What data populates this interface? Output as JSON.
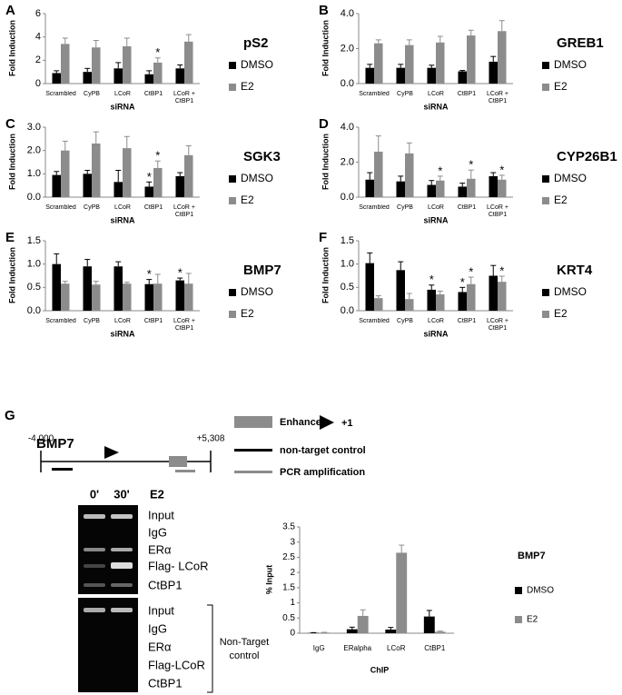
{
  "chart_data": [
    {
      "type": "bar",
      "panel": "A",
      "title": "pS2",
      "ylabel": "Fold Induction",
      "xlabel": "siRNA",
      "categories": [
        "Scrambled",
        "CyPB",
        "LCoR",
        "CtBP1",
        "LCoR + CtBP1"
      ],
      "series": [
        {
          "name": "DMSO",
          "color": "#000000",
          "values": [
            0.9,
            1.0,
            1.3,
            0.8,
            1.3
          ],
          "errors": [
            0.2,
            0.3,
            0.5,
            0.3,
            0.3
          ]
        },
        {
          "name": "E2",
          "color": "#8c8c8c",
          "values": [
            3.4,
            3.1,
            3.2,
            1.8,
            3.6
          ],
          "errors": [
            0.5,
            0.6,
            0.7,
            0.4,
            0.6
          ]
        }
      ],
      "ylim": [
        0,
        6
      ],
      "yticks": [
        0,
        2,
        4,
        6
      ],
      "annotations": [
        {
          "text": "*",
          "series": "E2",
          "category": "CtBP1"
        }
      ]
    },
    {
      "type": "bar",
      "panel": "B",
      "title": "GREB1",
      "ylabel": "Fold Induction",
      "xlabel": "siRNA",
      "categories": [
        "Scrambled",
        "CyPB",
        "LCoR",
        "CtBP1",
        "LCoR + CtBP1"
      ],
      "series": [
        {
          "name": "DMSO",
          "color": "#000000",
          "values": [
            0.9,
            0.9,
            0.9,
            0.7,
            1.25
          ],
          "errors": [
            0.2,
            0.2,
            0.15,
            0.05,
            0.3
          ]
        },
        {
          "name": "E2",
          "color": "#8c8c8c",
          "values": [
            2.3,
            2.2,
            2.35,
            2.75,
            3.0
          ],
          "errors": [
            0.2,
            0.3,
            0.35,
            0.3,
            0.6
          ]
        }
      ],
      "ylim": [
        0,
        4
      ],
      "yticks": [
        {
          "value": 0,
          "label": "0.0"
        },
        {
          "value": 2,
          "label": "2.0"
        },
        {
          "value": 4,
          "label": "4.0"
        }
      ],
      "annotations": []
    },
    {
      "type": "bar",
      "panel": "C",
      "title": "SGK3",
      "ylabel": "Fold Induction",
      "xlabel": "siRNA",
      "categories": [
        "Scrambled",
        "CyPB",
        "LCoR",
        "CtBP1",
        "LCoR + CtBP1"
      ],
      "series": [
        {
          "name": "DMSO",
          "color": "#000000",
          "values": [
            0.95,
            1.0,
            0.65,
            0.45,
            0.9
          ],
          "errors": [
            0.15,
            0.15,
            0.5,
            0.2,
            0.15
          ]
        },
        {
          "name": "E2",
          "color": "#8c8c8c",
          "values": [
            2.0,
            2.3,
            2.1,
            1.25,
            1.8
          ],
          "errors": [
            0.4,
            0.5,
            0.5,
            0.3,
            0.4
          ]
        }
      ],
      "ylim": [
        0,
        3
      ],
      "yticks": [
        {
          "value": 0,
          "label": "0.0"
        },
        {
          "value": 1,
          "label": "1.0"
        },
        {
          "value": 2,
          "label": "2.0"
        },
        {
          "value": 3,
          "label": "3.0"
        }
      ],
      "annotations": [
        {
          "text": "*",
          "series": "DMSO",
          "category": "CtBP1"
        },
        {
          "text": "*",
          "series": "E2",
          "category": "CtBP1"
        }
      ]
    },
    {
      "type": "bar",
      "panel": "D",
      "title": "CYP26B1",
      "ylabel": "Fold Induction",
      "xlabel": "siRNA",
      "categories": [
        "Scrambled",
        "CyPB",
        "LCoR",
        "CtBP1",
        "LCoR + CtBP1"
      ],
      "series": [
        {
          "name": "DMSO",
          "color": "#000000",
          "values": [
            1.0,
            0.9,
            0.7,
            0.6,
            1.2
          ],
          "errors": [
            0.4,
            0.3,
            0.25,
            0.2,
            0.2
          ]
        },
        {
          "name": "E2",
          "color": "#8c8c8c",
          "values": [
            2.6,
            2.5,
            0.95,
            1.05,
            1.0
          ],
          "errors": [
            0.9,
            0.6,
            0.25,
            0.5,
            0.25
          ]
        }
      ],
      "ylim": [
        0,
        4
      ],
      "yticks": [
        {
          "value": 0,
          "label": "0.0"
        },
        {
          "value": 2,
          "label": "2.0"
        },
        {
          "value": 4,
          "label": "4.0"
        }
      ],
      "annotations": [
        {
          "text": "*",
          "series": "E2",
          "category": "LCoR"
        },
        {
          "text": "*",
          "series": "E2",
          "category": "CtBP1"
        },
        {
          "text": "*",
          "series": "E2",
          "category": "LCoR + CtBP1"
        }
      ]
    },
    {
      "type": "bar",
      "panel": "E",
      "title": "BMP7",
      "ylabel": "Fold Induction",
      "xlabel": "siRNA",
      "categories": [
        "Scrambled",
        "CyPB",
        "LCoR",
        "CtBP1",
        "LCoR + CtBP1"
      ],
      "series": [
        {
          "name": "DMSO",
          "color": "#000000",
          "values": [
            1.0,
            0.95,
            0.95,
            0.57,
            0.65
          ],
          "errors": [
            0.22,
            0.15,
            0.1,
            0.1,
            0.05
          ]
        },
        {
          "name": "E2",
          "color": "#8c8c8c",
          "values": [
            0.58,
            0.56,
            0.58,
            0.58,
            0.58
          ],
          "errors": [
            0.05,
            0.07,
            0.03,
            0.2,
            0.22
          ]
        }
      ],
      "ylim": [
        0,
        1.5
      ],
      "yticks": [
        {
          "value": 0,
          "label": "0.0"
        },
        {
          "value": 0.5,
          "label": "0.5"
        },
        {
          "value": 1,
          "label": "1.0"
        },
        {
          "value": 1.5,
          "label": "1.5"
        }
      ],
      "annotations": [
        {
          "text": "*",
          "series": "DMSO",
          "category": "CtBP1"
        },
        {
          "text": "*",
          "series": "DMSO",
          "category": "LCoR + CtBP1"
        }
      ]
    },
    {
      "type": "bar",
      "panel": "F",
      "title": "KRT4",
      "ylabel": "Fold Induction",
      "xlabel": "siRNA",
      "categories": [
        "Scrambled",
        "CyPB",
        "LCoR",
        "CtBP1",
        "LCoR + CtBP1"
      ],
      "series": [
        {
          "name": "DMSO",
          "color": "#000000",
          "values": [
            1.02,
            0.87,
            0.45,
            0.4,
            0.75
          ],
          "errors": [
            0.22,
            0.18,
            0.1,
            0.1,
            0.22
          ]
        },
        {
          "name": "E2",
          "color": "#8c8c8c",
          "values": [
            0.27,
            0.25,
            0.35,
            0.57,
            0.62
          ],
          "errors": [
            0.05,
            0.12,
            0.07,
            0.15,
            0.12
          ]
        }
      ],
      "ylim": [
        0,
        1.5
      ],
      "yticks": [
        {
          "value": 0,
          "label": "0.0"
        },
        {
          "value": 0.5,
          "label": "0.5"
        },
        {
          "value": 1,
          "label": "1.0"
        },
        {
          "value": 1.5,
          "label": "1.5"
        }
      ],
      "annotations": [
        {
          "text": "*",
          "series": "DMSO",
          "category": "LCoR"
        },
        {
          "text": "*",
          "series": "DMSO",
          "category": "CtBP1"
        },
        {
          "text": "*",
          "series": "E2",
          "category": "CtBP1"
        },
        {
          "text": "*",
          "series": "E2",
          "category": "LCoR + CtBP1"
        }
      ]
    },
    {
      "type": "bar",
      "title": "BMP7",
      "ylabel": "% Input",
      "xlabel": "ChIP",
      "categories": [
        "IgG",
        "ERalpha",
        "LCoR",
        "CtBP1"
      ],
      "series": [
        {
          "name": "DMSO",
          "color": "#000000",
          "values": [
            0.01,
            0.13,
            0.12,
            0.55
          ],
          "errors": [
            0.01,
            0.07,
            0.07,
            0.2
          ]
        },
        {
          "name": "E2",
          "color": "#8c8c8c",
          "values": [
            0.02,
            0.57,
            2.65,
            0.05
          ],
          "errors": [
            0.01,
            0.2,
            0.25,
            0.02
          ]
        }
      ],
      "ylim": [
        0,
        3.5
      ],
      "yticks": [
        0,
        0.5,
        1,
        1.5,
        2,
        2.5,
        3,
        3.5
      ],
      "annotations": []
    }
  ],
  "diagram": {
    "panel": "G",
    "gene": "BMP7",
    "start": "-4,000",
    "end": "+5,308",
    "legend": {
      "enhancer": "Enhancer",
      "tss": "+1",
      "control": "non-target control",
      "pcr": "PCR amplification"
    },
    "gel": {
      "times": [
        "0'",
        "30'"
      ],
      "treatment": "E2",
      "top_lanes": [
        "Input",
        "IgG",
        "ERα",
        "Flag- LCoR",
        "CtBP1"
      ],
      "bottom_lanes": [
        "Input",
        "IgG",
        "ERα",
        "Flag-LCoR",
        "CtBP1"
      ],
      "bracket": "Non-Target control"
    }
  }
}
